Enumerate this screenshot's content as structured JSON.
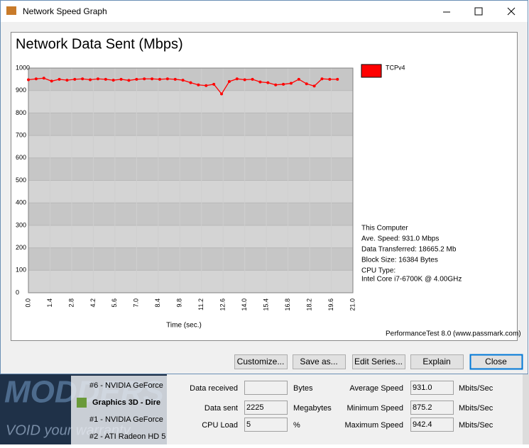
{
  "window": {
    "title": "Network Speed Graph"
  },
  "chart_data": {
    "type": "line",
    "title": "Network Data Sent (Mbps)",
    "x_label": "Time (sec.)",
    "x": [
      0,
      0.5,
      1,
      1.5,
      2,
      2.5,
      3,
      3.5,
      4,
      4.5,
      5,
      5.5,
      6,
      6.5,
      7,
      7.5,
      8,
      8.5,
      9,
      9.5,
      10,
      10.5,
      11,
      11.5,
      12,
      12.5,
      13,
      13.5,
      14,
      14.5,
      15,
      15.5,
      16,
      16.5,
      17,
      17.5,
      18,
      18.5,
      19,
      19.5,
      20
    ],
    "series": [
      {
        "name": "TCPv4",
        "color": "#ff0000",
        "values": [
          948,
          952,
          955,
          942,
          950,
          946,
          950,
          952,
          948,
          952,
          950,
          946,
          950,
          945,
          950,
          952,
          952,
          950,
          952,
          950,
          946,
          935,
          925,
          922,
          928,
          885,
          940,
          952,
          948,
          950,
          938,
          935,
          925,
          928,
          932,
          950,
          930,
          920,
          952,
          950,
          950
        ]
      }
    ],
    "xlim": [
      0,
      21
    ],
    "xticks": [
      {
        "value": 0,
        "label": "0.0"
      },
      1.4,
      2.8,
      4.2,
      5.6,
      {
        "value": 7,
        "label": "7.0"
      },
      8.4,
      9.8,
      11.2,
      12.6,
      {
        "value": 14,
        "label": "14.0"
      },
      15.4,
      16.8,
      18.2,
      19.6,
      {
        "value": 21,
        "label": "21.0"
      }
    ],
    "ylim": [
      0,
      1000
    ],
    "yticks": [
      0,
      100,
      200,
      300,
      400,
      500,
      600,
      700,
      800,
      900,
      1000
    ],
    "grid": true,
    "info": [
      "This Computer",
      "Ave. Speed: 931.0 Mbps",
      "Data Transferred: 18665.2 Mb",
      "Block Size: 16384 Bytes",
      "CPU Type:",
      "Intel Core i7-6700K @ 4.00GHz"
    ],
    "footer": "PerformanceTest 8.0 (www.passmark.com)"
  },
  "buttons": [
    "Customize...",
    "Save as...",
    "Edit Series...",
    "Explain",
    "Close"
  ],
  "background": {
    "logo": "MODDERS",
    "tagline": "VOID your warranty",
    "list": [
      "#6 - NVIDIA GeForce",
      "Graphics 3D - Dire",
      "#1 - NVIDIA GeForce",
      "#2 - ATI Radeon HD 5"
    ],
    "fields": [
      {
        "label": "Data received",
        "value": "",
        "unit": "Bytes"
      },
      {
        "label": "Data sent",
        "value": "2225",
        "unit": "Megabytes"
      },
      {
        "label": "CPU Load",
        "value": "5",
        "unit": "%"
      }
    ],
    "speeds": [
      {
        "label": "Average Speed",
        "value": "931.0",
        "unit": "Mbits/Sec"
      },
      {
        "label": "Minimum Speed",
        "value": "875.2",
        "unit": "Mbits/Sec"
      },
      {
        "label": "Maximum Speed",
        "value": "942.4",
        "unit": "Mbits/Sec"
      }
    ]
  }
}
